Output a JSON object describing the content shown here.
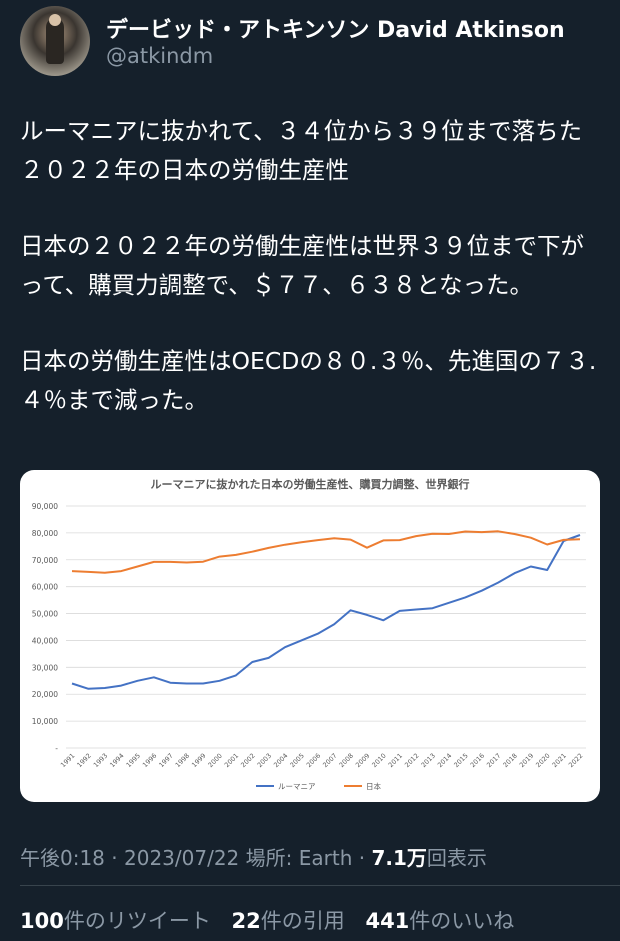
{
  "author": {
    "display_name": "デービッド・アトキンソン David Atkinson",
    "handle": "@atkindm"
  },
  "tweet": {
    "paragraphs": [
      "ルーマニアに抜かれて、３４位から３９位まで落ちた２０２２年の日本の労働生産性",
      "日本の２０２２年の労働生産性は世界３９位まで下がって、購買力調整で、＄７７、６３８となった。",
      "日本の労働生産性はOECDの８０.３％、先進国の７３.４％まで減った。"
    ]
  },
  "meta": {
    "time": "午後0:18",
    "sep": " · ",
    "date": "2023/07/22",
    "location": "場所: Earth",
    "views_number": "7.1万",
    "views_label": "回表示"
  },
  "stats": {
    "retweets_number": "100",
    "retweets_label": "件のリツイート",
    "quotes_number": "22",
    "quotes_label": "件の引用",
    "likes_number": "441",
    "likes_label": "件のいいね"
  },
  "colors": {
    "romania": "#4472c4",
    "japan": "#ed7d31"
  },
  "chart_data": {
    "type": "line",
    "title": "ルーマニアに抜かれた日本の労働生産性、購買力調整、世界銀行",
    "x": [
      "1991",
      "1992",
      "1993",
      "1994",
      "1995",
      "1996",
      "1997",
      "1998",
      "1999",
      "2000",
      "2001",
      "2002",
      "2003",
      "2004",
      "2005",
      "2006",
      "2007",
      "2008",
      "2009",
      "2010",
      "2011",
      "2012",
      "2013",
      "2014",
      "2015",
      "2016",
      "2017",
      "2018",
      "2019",
      "2020",
      "2021",
      "2022"
    ],
    "series": [
      {
        "name": "ルーマニア",
        "values": [
          24000,
          22000,
          22300,
          23200,
          25000,
          26300,
          24300,
          24000,
          24000,
          25000,
          27000,
          32000,
          33500,
          37500,
          40000,
          42500,
          46000,
          51200,
          49500,
          47500,
          51000,
          51500,
          52000,
          54000,
          56000,
          58500,
          61500,
          65000,
          67500,
          66200,
          77000,
          79200
        ]
      },
      {
        "name": "日本",
        "values": [
          65800,
          65500,
          65200,
          65800,
          67500,
          69200,
          69200,
          69000,
          69300,
          71200,
          71800,
          73000,
          74400,
          75600,
          76500,
          77300,
          78000,
          77500,
          74500,
          77200,
          77300,
          78800,
          79700,
          79600,
          80500,
          80300,
          80600,
          79600,
          78200,
          75700,
          77400,
          77600
        ]
      }
    ],
    "y_ticks": [
      "-",
      "10,000",
      "20,000",
      "30,000",
      "40,000",
      "50,000",
      "60,000",
      "70,000",
      "80,000",
      "90,000"
    ],
    "ylim": [
      0,
      90000
    ],
    "grid": true,
    "legend": "bottom"
  }
}
